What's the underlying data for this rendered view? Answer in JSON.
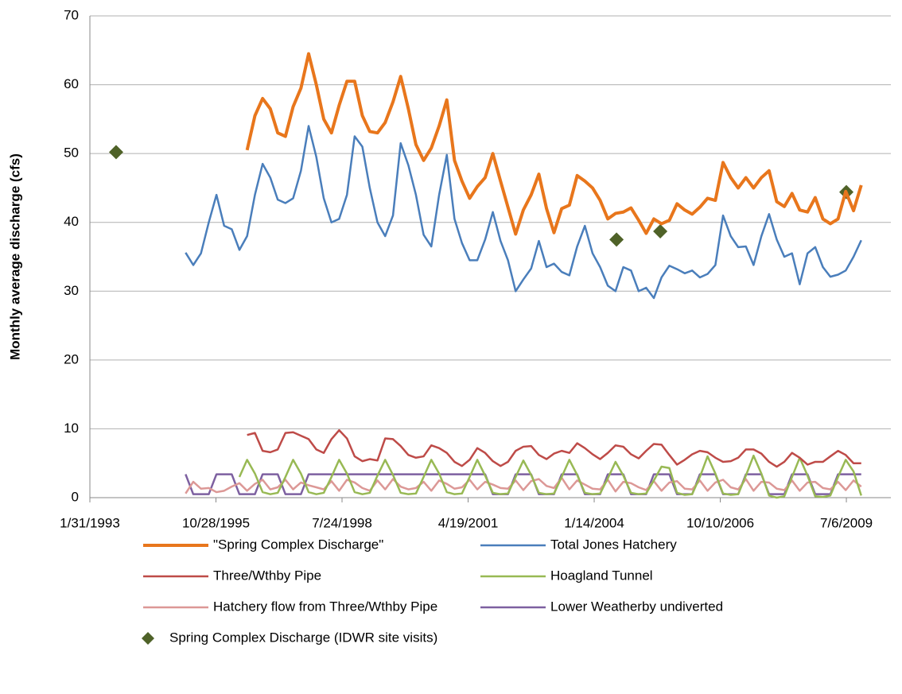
{
  "chart_data": {
    "type": "line",
    "y_label": "Monthly average discharge (cfs)",
    "ylim": [
      0,
      70
    ],
    "yticks": [
      0,
      10,
      20,
      30,
      40,
      50,
      60,
      70
    ],
    "grid": true,
    "xlim": [
      "1993-01-31",
      "2010-06-24"
    ],
    "xticks": [
      {
        "value": "1993-01-31",
        "label": "1/31/1993"
      },
      {
        "value": "1995-10-28",
        "label": "10/28/1995"
      },
      {
        "value": "1998-07-24",
        "label": "7/24/1998"
      },
      {
        "value": "2001-04-19",
        "label": "4/19/2001"
      },
      {
        "value": "2004-01-14",
        "label": "1/14/2004"
      },
      {
        "value": "2006-10-10",
        "label": "10/10/2006"
      },
      {
        "value": "2009-07-06",
        "label": "7/6/2009"
      }
    ],
    "legend": "bottom",
    "x": [
      "1995-01-01",
      "1995-03-01",
      "1995-05-01",
      "1995-07-01",
      "1995-09-01",
      "1995-11-01",
      "1996-01-01",
      "1996-03-01",
      "1996-05-01",
      "1996-07-01",
      "1996-09-01",
      "1996-11-01",
      "1997-01-01",
      "1997-03-01",
      "1997-05-01",
      "1997-07-01",
      "1997-09-01",
      "1997-11-01",
      "1998-01-01",
      "1998-03-01",
      "1998-05-01",
      "1998-07-01",
      "1998-09-01",
      "1998-11-01",
      "1999-01-01",
      "1999-03-01",
      "1999-05-01",
      "1999-07-01",
      "1999-09-01",
      "1999-11-01",
      "2000-01-01",
      "2000-03-01",
      "2000-05-01",
      "2000-07-01",
      "2000-09-01",
      "2000-11-01",
      "2001-01-01",
      "2001-03-01",
      "2001-05-01",
      "2001-07-01",
      "2001-09-01",
      "2001-11-01",
      "2002-01-01",
      "2002-03-01",
      "2002-05-01",
      "2002-07-01",
      "2002-09-01",
      "2002-11-01",
      "2003-01-01",
      "2003-03-01",
      "2003-05-01",
      "2003-07-01",
      "2003-09-01",
      "2003-11-01",
      "2004-01-01",
      "2004-03-01",
      "2004-05-01",
      "2004-07-01",
      "2004-09-01",
      "2004-11-01",
      "2005-01-01",
      "2005-03-01",
      "2005-05-01",
      "2005-07-01",
      "2005-09-01",
      "2005-11-01",
      "2006-01-01",
      "2006-03-01",
      "2006-05-01",
      "2006-07-01",
      "2006-09-01",
      "2006-11-01",
      "2007-01-01",
      "2007-03-01",
      "2007-05-01",
      "2007-07-01",
      "2007-09-01",
      "2007-11-01",
      "2008-01-01",
      "2008-03-01",
      "2008-05-01",
      "2008-07-01",
      "2008-09-01",
      "2008-11-01",
      "2009-01-01",
      "2009-03-01",
      "2009-05-01",
      "2009-07-01",
      "2009-09-01",
      "2009-11-01"
    ],
    "series": [
      {
        "name": "\"Spring Complex Discharge\"",
        "color": "#e8761c",
        "line_width": 4,
        "values": [
          null,
          null,
          null,
          null,
          null,
          null,
          null,
          null,
          null,
          50.5,
          55.5,
          58,
          56.5,
          53,
          52.5,
          56.8,
          59.5,
          64.5,
          60,
          55,
          53,
          57,
          60.5,
          60.5,
          55.5,
          53.2,
          53,
          54.5,
          57.5,
          61.2,
          56.5,
          51.3,
          49,
          50.8,
          54,
          57.8,
          49,
          46,
          43.5,
          45.2,
          46.5,
          50,
          46,
          42.2,
          38.3,
          41.8,
          44,
          47,
          42,
          38.5,
          42,
          42.5,
          46.8,
          46,
          45,
          43.2,
          40.5,
          41.3,
          41.5,
          42.1,
          40.3,
          38.4,
          40.5,
          39.8,
          40.3,
          42.7,
          41.8,
          41.2,
          42.2,
          43.5,
          43.2,
          48.7,
          46.5,
          45,
          46.5,
          45,
          46.5,
          47.5,
          43,
          42.3,
          44.2,
          41.8,
          41.5,
          43.6,
          40.5,
          39.8,
          40.5,
          44.5,
          41.7,
          45.4
        ]
      },
      {
        "name": "Total Jones Hatchery",
        "color": "#4a7ebb",
        "line_width": 2.5,
        "values": [
          null,
          35.6,
          33.8,
          35.5,
          40,
          44,
          39.5,
          39,
          36,
          38,
          44,
          48.5,
          46.5,
          43.3,
          42.8,
          43.5,
          47.5,
          54,
          49.5,
          43.5,
          40,
          40.5,
          44,
          52.5,
          51,
          45,
          40,
          38,
          41,
          51.5,
          48.3,
          44,
          38.2,
          36.5,
          44,
          49.8,
          40.5,
          37,
          34.5,
          34.5,
          37.5,
          41.5,
          37.3,
          34.5,
          30,
          31.7,
          33.3,
          37.3,
          33.5,
          34,
          32.8,
          32.3,
          36.5,
          39.5,
          35.5,
          33.5,
          30.8,
          30,
          33.5,
          33,
          30,
          30.5,
          29,
          32,
          33.7,
          33.2,
          32.6,
          33,
          32,
          32.5,
          33.8,
          41,
          38,
          36.4,
          36.5,
          33.8,
          38,
          41.2,
          37.5,
          35,
          35.5,
          31,
          35.5,
          36.4,
          33.5,
          32.1,
          32.4,
          33,
          35,
          37.4
        ]
      },
      {
        "name": "Three/Wthby Pipe",
        "color": "#be4b48",
        "line_width": 2.5,
        "values": [
          null,
          null,
          null,
          null,
          null,
          null,
          null,
          null,
          null,
          9.1,
          9.4,
          6.8,
          6.6,
          7,
          9.4,
          9.5,
          9,
          8.5,
          7,
          6.5,
          8.5,
          9.8,
          8.6,
          6,
          5.3,
          5.6,
          5.4,
          8.6,
          8.5,
          7.5,
          6.2,
          5.8,
          6,
          7.6,
          7.2,
          6.5,
          5.2,
          4.6,
          5.5,
          7.2,
          6.5,
          5.3,
          4.6,
          5.2,
          6.8,
          7.4,
          7.5,
          6.2,
          5.6,
          6.4,
          6.8,
          6.5,
          7.9,
          7.2,
          6.3,
          5.6,
          6.5,
          7.6,
          7.4,
          6.3,
          5.7,
          6.8,
          7.8,
          7.7,
          6.2,
          4.8,
          5.5,
          6.3,
          6.8,
          6.6,
          5.8,
          5.2,
          5.3,
          5.8,
          7,
          7,
          6.4,
          5.2,
          4.5,
          5.2,
          6.5,
          5.8,
          4.8,
          5.2,
          5.2,
          6,
          6.8,
          6.2,
          5,
          5
        ]
      },
      {
        "name": "Hoagland Tunnel",
        "color": "#98b954",
        "line_width": 2.5,
        "values": [
          null,
          null,
          null,
          null,
          null,
          null,
          null,
          null,
          3,
          5.5,
          3.5,
          0.8,
          0.5,
          0.7,
          3,
          5.5,
          3.5,
          0.8,
          0.5,
          0.7,
          3,
          5.5,
          3.5,
          0.8,
          0.5,
          0.7,
          3.2,
          5.5,
          3.3,
          0.7,
          0.5,
          0.6,
          3,
          5.5,
          3.5,
          0.8,
          0.5,
          0.6,
          3,
          5.5,
          3.2,
          0.7,
          0.5,
          0.6,
          3,
          5.4,
          3.3,
          0.7,
          0.5,
          0.6,
          3,
          5.5,
          3.3,
          0.7,
          0.5,
          0.6,
          2.8,
          5.2,
          3.2,
          0.7,
          0.5,
          0.6,
          2.5,
          4.5,
          4.3,
          0.7,
          0.4,
          0.5,
          3,
          6,
          3.5,
          0.6,
          0.4,
          0.5,
          3.2,
          6.1,
          3.5,
          0.3,
          0,
          0.2,
          3,
          5.8,
          3.2,
          0.2,
          0.1,
          0.3,
          3,
          5.5,
          3.8,
          0.3
        ]
      },
      {
        "name": "Hatchery flow from Three/Wthby Pipe",
        "color": "#dc9896",
        "line_width": 2.5,
        "values": [
          null,
          0.6,
          2.3,
          1.3,
          1.4,
          0.8,
          1,
          1.6,
          2.1,
          1,
          2,
          2.6,
          1.2,
          1.5,
          2.6,
          1.2,
          2.2,
          1.8,
          1.5,
          1.2,
          2.4,
          1,
          2.6,
          2.2,
          1.4,
          1,
          2.5,
          1.2,
          2.7,
          1.6,
          1.2,
          1.4,
          2.3,
          1,
          2.5,
          2,
          1.3,
          1.5,
          2.6,
          1.2,
          2.3,
          1.9,
          1.4,
          1.3,
          2.5,
          1.1,
          2.4,
          2.7,
          1.7,
          1.4,
          2.9,
          1.2,
          2.5,
          1.9,
          1.3,
          1.2,
          2.6,
          0.9,
          2.3,
          2.1,
          1.5,
          1.1,
          2.4,
          1,
          2.2,
          2.4,
          1.3,
          1.2,
          2.5,
          1,
          2.2,
          2.6,
          1.5,
          1.2,
          2.7,
          1,
          2.3,
          2.2,
          1.3,
          1.1,
          2.5,
          1,
          2.2,
          2.3,
          1.4,
          1.2,
          2.3,
          1.1,
          2.5,
          1.6
        ]
      },
      {
        "name": "Lower Weatherby undiverted",
        "color": "#7d60a0",
        "line_width": 2.5,
        "values": [
          null,
          3.4,
          0.5,
          0.5,
          0.5,
          3.4,
          3.4,
          3.4,
          0.5,
          0.5,
          0.5,
          3.4,
          3.4,
          3.4,
          0.5,
          0.5,
          0.5,
          3.4,
          3.4,
          3.4,
          3.4,
          3.4,
          3.4,
          3.4,
          3.4,
          3.4,
          3.4,
          3.4,
          3.4,
          3.4,
          3.4,
          3.4,
          3.4,
          3.4,
          3.4,
          3.4,
          3.4,
          3.4,
          3.4,
          3.4,
          3.4,
          0.5,
          0.5,
          0.5,
          3.4,
          3.4,
          3.4,
          0.5,
          0.5,
          0.5,
          3.4,
          3.4,
          3.4,
          0.5,
          0.5,
          0.5,
          3.4,
          3.4,
          3.4,
          0.5,
          0.5,
          0.5,
          3.4,
          3.4,
          3.4,
          0.5,
          0.5,
          0.5,
          3.4,
          3.4,
          3.4,
          0.5,
          0.5,
          0.5,
          3.4,
          3.4,
          3.4,
          0.5,
          0.5,
          0.5,
          3.4,
          3.4,
          3.4,
          0.5,
          0.5,
          0.5,
          3.4,
          3.4,
          3.4,
          3.4
        ]
      },
      {
        "name": "Spring Complex Discharge (IDWR site visits)",
        "color": "#4f6228",
        "marker": "diamond",
        "x": [
          "1993-08-27",
          "2004-07-09",
          "2005-06-21",
          "2009-07-06"
        ],
        "values": [
          50.2,
          37.5,
          38.7,
          44.4
        ]
      }
    ]
  }
}
